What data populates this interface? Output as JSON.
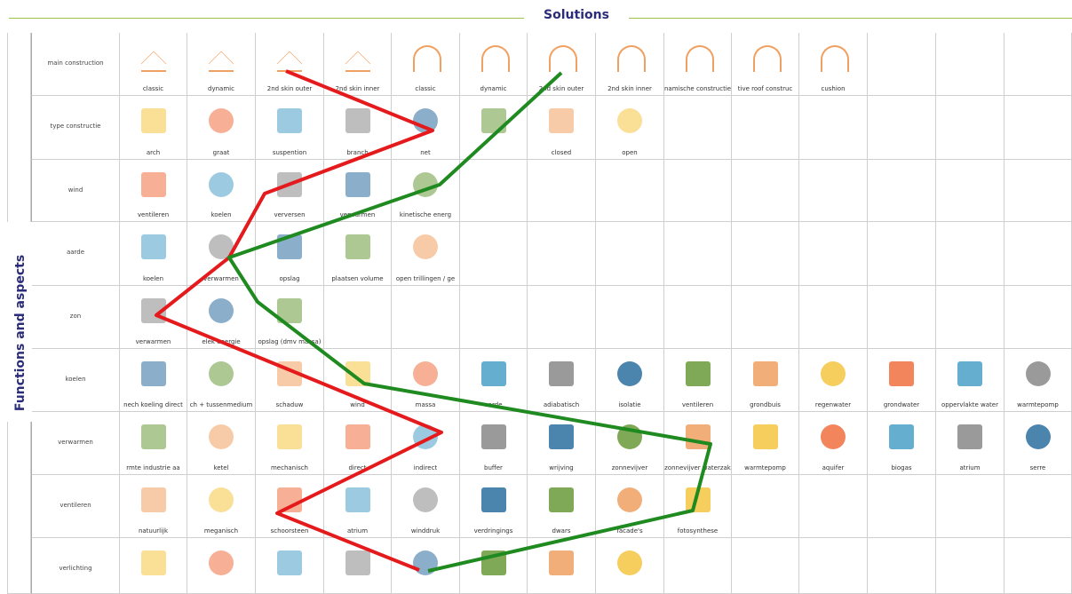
{
  "header": {
    "title": "Solutions"
  },
  "side_label": "Functions and aspects",
  "table": {
    "rows": [
      {
        "label": "main construction",
        "cells": [
          "classic",
          "dynamic",
          "2nd skin outer",
          "2nd skin inner",
          "classic",
          "dynamic",
          "2nd skin outer",
          "2nd skin inner",
          "namische constructie",
          "tive roof construc",
          "cushion"
        ]
      },
      {
        "label": "type constructie",
        "cells": [
          "arch",
          "graat",
          "suspention",
          "branch",
          "net",
          null,
          "closed",
          "open"
        ]
      },
      {
        "label": "wind",
        "cells": [
          "ventileren",
          "koelen",
          "verversen",
          "verwarmen",
          "kinetische energ"
        ]
      },
      {
        "label": "aarde",
        "cells": [
          "koelen",
          "verwarmen",
          "opslag",
          "plaatsen volume",
          "open trillingen / ge"
        ]
      },
      {
        "label": "zon",
        "cells": [
          "verwarmen",
          "elek energie",
          "opslag (dmv massa)"
        ]
      },
      {
        "label": "koelen",
        "cells": [
          "nech koeling direct",
          "ch + tussenmedium",
          "schaduw",
          "wind",
          "massa",
          "aarde",
          "adiabatisch",
          "isolatie",
          "ventileren",
          "grondbuis",
          "regenwater",
          "grondwater",
          "oppervlakte water",
          "warmtepomp"
        ]
      },
      {
        "label": "verwarmen",
        "cells": [
          "rmte industrie aa",
          "ketel",
          "mechanisch",
          "direct",
          "indirect",
          "buffer",
          "wrijving",
          "zonnevijver",
          "zonnevijver waterzak",
          "warmtepomp",
          "aquifer",
          "biogas",
          "atrium",
          "serre"
        ]
      },
      {
        "label": "ventileren",
        "cells": [
          "natuurlijk",
          "meganisch",
          "schoorsteen",
          "atrium",
          "winddruk",
          "verdringings",
          "dwars",
          "facade's",
          "fotosynthese"
        ]
      },
      {
        "label": "verlichting",
        "cells": [
          null,
          null,
          null,
          null,
          null,
          null,
          null,
          null
        ]
      }
    ]
  }
}
